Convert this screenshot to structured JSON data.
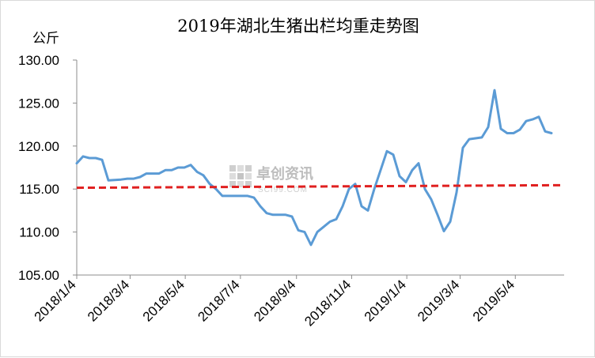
{
  "chart_data": {
    "type": "line",
    "title": "2019年湖北生猪出栏均重走势图",
    "ylabel": "公斤",
    "xlabel": "",
    "ylim": [
      105,
      130
    ],
    "y_ticks": [
      "105.00",
      "110.00",
      "115.00",
      "120.00",
      "125.00",
      "130.00"
    ],
    "x_range": [
      "2018-01-04",
      "2019-06-27"
    ],
    "x_ticks": [
      "2018/1/4",
      "2018/3/4",
      "2018/5/4",
      "2018/7/4",
      "2018/9/4",
      "2018/11/4",
      "2019/1/4",
      "2019/3/4",
      "2019/5/4"
    ],
    "grid": false,
    "legend": "none",
    "series": [
      {
        "type": "line",
        "color": "#5b9bd5",
        "points": [
          [
            "2018-01-04",
            118.0
          ],
          [
            "2018-01-11",
            118.8
          ],
          [
            "2018-01-18",
            118.6
          ],
          [
            "2018-01-25",
            118.6
          ],
          [
            "2018-02-01",
            118.4
          ],
          [
            "2018-02-08",
            116.0
          ],
          [
            "2018-02-22",
            116.1
          ],
          [
            "2018-03-01",
            116.2
          ],
          [
            "2018-03-08",
            116.2
          ],
          [
            "2018-03-15",
            116.4
          ],
          [
            "2018-03-22",
            116.8
          ],
          [
            "2018-03-29",
            116.8
          ],
          [
            "2018-04-05",
            116.8
          ],
          [
            "2018-04-12",
            117.2
          ],
          [
            "2018-04-19",
            117.2
          ],
          [
            "2018-04-26",
            117.5
          ],
          [
            "2018-05-03",
            117.5
          ],
          [
            "2018-05-10",
            117.8
          ],
          [
            "2018-05-17",
            117.0
          ],
          [
            "2018-05-24",
            116.6
          ],
          [
            "2018-05-31",
            115.6
          ],
          [
            "2018-06-07",
            115.0
          ],
          [
            "2018-06-14",
            114.2
          ],
          [
            "2018-06-21",
            114.2
          ],
          [
            "2018-06-28",
            114.2
          ],
          [
            "2018-07-05",
            114.2
          ],
          [
            "2018-07-12",
            114.2
          ],
          [
            "2018-07-19",
            114.0
          ],
          [
            "2018-07-26",
            113.0
          ],
          [
            "2018-08-02",
            112.2
          ],
          [
            "2018-08-09",
            112.0
          ],
          [
            "2018-08-16",
            112.0
          ],
          [
            "2018-08-23",
            112.0
          ],
          [
            "2018-08-30",
            111.8
          ],
          [
            "2018-09-06",
            110.2
          ],
          [
            "2018-09-13",
            110.0
          ],
          [
            "2018-09-20",
            108.5
          ],
          [
            "2018-09-27",
            110.0
          ],
          [
            "2018-10-04",
            110.6
          ],
          [
            "2018-10-11",
            111.2
          ],
          [
            "2018-10-18",
            111.5
          ],
          [
            "2018-10-25",
            113.0
          ],
          [
            "2018-11-01",
            115.0
          ],
          [
            "2018-11-08",
            115.6
          ],
          [
            "2018-11-15",
            113.0
          ],
          [
            "2018-11-22",
            112.5
          ],
          [
            "2018-11-29",
            115.0
          ],
          [
            "2018-12-06",
            117.2
          ],
          [
            "2018-12-13",
            119.4
          ],
          [
            "2018-12-20",
            119.0
          ],
          [
            "2018-12-27",
            116.5
          ],
          [
            "2019-01-03",
            115.8
          ],
          [
            "2019-01-10",
            117.2
          ],
          [
            "2019-01-17",
            118.0
          ],
          [
            "2019-01-24",
            115.0
          ],
          [
            "2019-01-31",
            113.8
          ],
          [
            "2019-02-07",
            112.0
          ],
          [
            "2019-02-14",
            110.1
          ],
          [
            "2019-02-21",
            111.2
          ],
          [
            "2019-02-28",
            114.6
          ],
          [
            "2019-03-07",
            119.8
          ],
          [
            "2019-03-14",
            120.8
          ],
          [
            "2019-03-21",
            120.9
          ],
          [
            "2019-03-28",
            121.0
          ],
          [
            "2019-04-04",
            122.2
          ],
          [
            "2019-04-11",
            126.5
          ],
          [
            "2019-04-18",
            122.0
          ],
          [
            "2019-04-25",
            121.5
          ],
          [
            "2019-05-02",
            121.5
          ],
          [
            "2019-05-09",
            121.9
          ],
          [
            "2019-05-16",
            122.9
          ],
          [
            "2019-05-23",
            123.1
          ],
          [
            "2019-05-30",
            123.4
          ],
          [
            "2019-06-06",
            121.7
          ],
          [
            "2019-06-13",
            121.5
          ]
        ]
      },
      {
        "type": "line",
        "dashed": true,
        "color": "#e02020",
        "points": [
          [
            "2018-01-04",
            115.15
          ],
          [
            "2019-06-27",
            115.45
          ]
        ]
      }
    ]
  },
  "watermark": {
    "text": "卓创资讯",
    "subtext": "SCI99.COM"
  }
}
